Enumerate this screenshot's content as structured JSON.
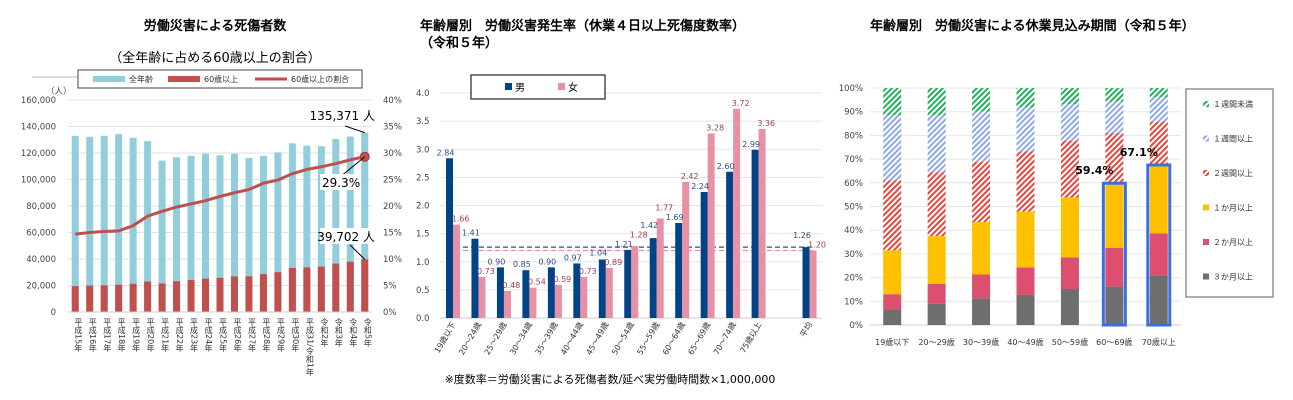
{
  "chart_data": [
    {
      "type": "bar+line",
      "title": "労働災害による死傷者数",
      "subtitle": "（全年齢に占める60歳以上の割合）",
      "ylabel": "（人）",
      "ylim": [
        0,
        160000
      ],
      "y2lim": [
        0,
        40
      ],
      "y_ticks": [
        "0",
        "20,000",
        "40,000",
        "60,000",
        "80,000",
        "100,000",
        "120,000",
        "140,000",
        "160,000"
      ],
      "y2_ticks": [
        "0%",
        "5%",
        "10%",
        "15%",
        "20%",
        "25%",
        "30%",
        "35%",
        "40%"
      ],
      "legend": [
        "全年齢",
        "60歳以上",
        "60歳以上の割合"
      ],
      "legend_position": "top",
      "grid": true,
      "categories": [
        "平成15年",
        "平成16年",
        "平成17年",
        "平成18年",
        "平成19年",
        "平成20年",
        "平成21年",
        "平成22年",
        "平成23年",
        "平成24年",
        "平成25年",
        "平成26年",
        "平成27年",
        "平成28年",
        "平成29年",
        "平成30年",
        "平成31/令和1年",
        "令和2年",
        "令和3年",
        "令和4年",
        "令和5年"
      ],
      "series": [
        {
          "name": "全年齢",
          "color": "#92CDDC",
          "values": [
            133000,
            132200,
            133000,
            134300,
            131500,
            129000,
            114200,
            116700,
            117900,
            119600,
            118200,
            119500,
            116300,
            117900,
            120500,
            127300,
            125600,
            125100,
            130600,
            132400,
            135371
          ]
        },
        {
          "name": "60歳以上",
          "color": "#C0504D",
          "values": [
            19500,
            19900,
            20100,
            20600,
            21300,
            23000,
            21500,
            23200,
            24200,
            25200,
            25800,
            26900,
            26900,
            28600,
            30000,
            33200,
            33700,
            34300,
            36500,
            37900,
            39702
          ]
        },
        {
          "name": "60歳以上の割合",
          "color": "#C0504D",
          "axis": "right",
          "values": [
            14.7,
            15.0,
            15.2,
            15.3,
            16.3,
            18.1,
            19.0,
            19.8,
            20.4,
            21.0,
            21.8,
            22.5,
            23.1,
            24.3,
            24.9,
            26.1,
            26.9,
            27.4,
            28.0,
            28.7,
            29.3
          ]
        }
      ],
      "annotations": [
        "135,371 人",
        "29.3%",
        "39,702 人"
      ]
    },
    {
      "type": "bar",
      "title": "年齢層別　労働災害発生率（休業４日以上死傷度数率）",
      "title2": "（令和５年）",
      "ylim": [
        0,
        4.0
      ],
      "y_ticks": [
        "0.0",
        "0.5",
        "1.0",
        "1.5",
        "2.0",
        "2.5",
        "3.0",
        "3.5",
        "4.0"
      ],
      "legend": [
        "男",
        "女"
      ],
      "legend_position": "top-left",
      "grid": true,
      "categories": [
        "19歳以下",
        "20～24歳",
        "25～29歳",
        "30～34歳",
        "35～39歳",
        "40～44歳",
        "45～49歳",
        "50～54歳",
        "55～59歳",
        "60～64歳",
        "65～69歳",
        "70～74歳",
        "75歳以上",
        "",
        "平均"
      ],
      "series": [
        {
          "name": "男",
          "color": "#004386",
          "label_color": "#2F4B8A",
          "values": [
            2.84,
            1.41,
            0.9,
            0.85,
            0.9,
            0.97,
            1.04,
            1.21,
            1.42,
            1.69,
            2.24,
            2.6,
            2.99,
            null,
            1.26
          ]
        },
        {
          "name": "女",
          "color": "#E891A5",
          "label_color": "#A0404F",
          "values": [
            1.66,
            0.73,
            0.48,
            0.54,
            0.59,
            0.73,
            0.89,
            1.28,
            1.77,
            2.42,
            3.28,
            3.72,
            3.36,
            null,
            1.2
          ]
        }
      ],
      "reference_lines": [
        {
          "value": 1.26,
          "color": "#2F4B8A"
        },
        {
          "value": 1.2,
          "color": "#E891A5"
        }
      ],
      "footnote": "※度数率＝労働災害による死傷者数/延べ実労働時間数×1,000,000"
    },
    {
      "type": "stacked-bar",
      "title": "年齢層別　労働災害による休業見込み期間（令和５年）",
      "ylim": [
        0,
        100
      ],
      "y_ticks": [
        "0%",
        "10%",
        "20%",
        "30%",
        "40%",
        "50%",
        "60%",
        "70%",
        "80%",
        "90%",
        "100%"
      ],
      "legend_position": "right",
      "grid": true,
      "categories": [
        "19歳以下",
        "20～29歳",
        "30～39歳",
        "40～49歳",
        "50～59歳",
        "60～69歳",
        "70歳以上"
      ],
      "series": [
        {
          "name": "３か月以上",
          "color": "#6E6E6E",
          "hatched": false,
          "values": [
            6.5,
            9.0,
            11.3,
            12.8,
            15.2,
            16.2,
            20.7
          ]
        },
        {
          "name": "２か月以上",
          "color": "#DC4F6E",
          "hatched": false,
          "values": [
            6.5,
            8.3,
            10.0,
            11.5,
            13.3,
            16.3,
            18.0
          ]
        },
        {
          "name": "１か月以上",
          "color": "#FFC000",
          "hatched": false,
          "values": [
            18.5,
            20.2,
            22.1,
            23.5,
            25.3,
            26.9,
            28.4
          ]
        },
        {
          "name": "２週間以上",
          "color": "#E8453C",
          "hatched": true,
          "values": [
            29.5,
            27.0,
            25.4,
            25.4,
            24.0,
            21.6,
            18.7
          ]
        },
        {
          "name": "１週間以上",
          "color": "#8EA9E8",
          "hatched": true,
          "values": [
            27.5,
            24.0,
            21.2,
            18.6,
            15.4,
            13.3,
            10.4
          ]
        },
        {
          "name": "１週間未満",
          "color": "#21B15A",
          "hatched": true,
          "values": [
            11.5,
            11.5,
            10.0,
            8.2,
            6.8,
            5.7,
            3.8
          ]
        }
      ],
      "highlight": {
        "categories": [
          "60～69歳",
          "70歳以上"
        ],
        "color": "#3B6FE0",
        "labels": [
          "59.4%",
          "67.1%"
        ]
      }
    }
  ]
}
